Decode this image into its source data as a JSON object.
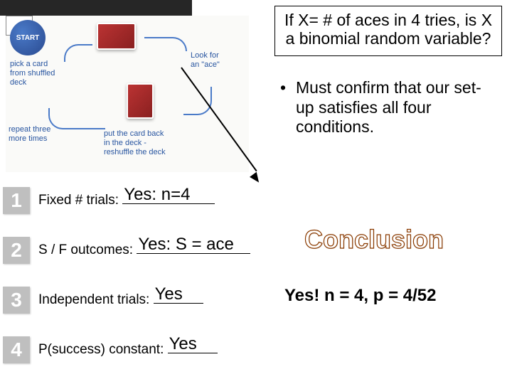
{
  "slide": {
    "background_color": "#ffffff",
    "dark_bar_color": "#262626"
  },
  "diagram": {
    "start_label": "START",
    "text1": "pick a card\nfrom shuffled\ndeck",
    "text2": "Look for\nan \"ace\"",
    "text3": "repeat three\nmore times",
    "text4": "put the card back\nin the deck -\nreshuffle the deck",
    "card_color": "#b33030",
    "text_color": "#2855a0",
    "start_bg": "#2a4a90"
  },
  "question": "If X= # of aces in 4 tries, is X a binomial random variable?",
  "bullet": "Must confirm that our set-up satisfies all four conditions.",
  "conditions": [
    {
      "num": "1",
      "label": "Fixed # trials: ",
      "answer": "Yes: n=4",
      "ul_width": 130
    },
    {
      "num": "2",
      "label": "S / F outcomes: ",
      "answer": "Yes: S = ace",
      "ul_width": 160
    },
    {
      "num": "3",
      "label": "Independent trials: ",
      "answer": "Yes",
      "ul_width": 70
    },
    {
      "num": "4",
      "label": "P(success) constant: ",
      "answer": "Yes",
      "ul_width": 70
    }
  ],
  "conclusion": {
    "title": "Conclusion",
    "answer": "Yes! n = 4, p = 4/52",
    "title_color_outline": "#8a3a00"
  },
  "fonts": {
    "body": 19,
    "answer": 24,
    "question": 23,
    "conclusion_title": 36,
    "conclusion_ans": 24,
    "badge": 28
  },
  "colors": {
    "badge_bg": "#bfbfbf",
    "badge_text": "#ffffff",
    "text": "#000000"
  }
}
